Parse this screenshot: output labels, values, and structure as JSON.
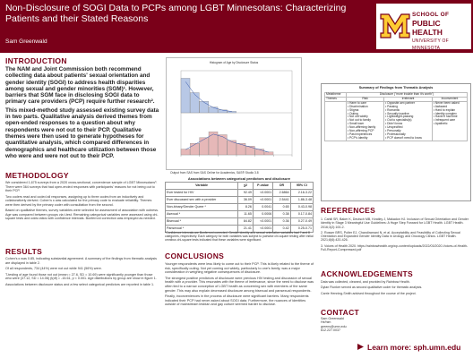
{
  "header": {
    "title": "Non-Disclosure of SOGI Data to PCPs among LGBT Minnesotans: Characterizing Patients and their Stated Reasons",
    "author": "Sam Greenwald",
    "logo": {
      "line1": "SCHOOL OF",
      "line2": "PUBLIC HEALTH",
      "line3": "UNIVERSITY OF MINNESOTA"
    }
  },
  "introduction": {
    "heading": "INTRODUCTION",
    "p1": "The NAM and Joint Commission both recommend collecting data about patients' sexual orientation and gender identity (SOGI) to address health disparities among sexual and gender minorities (SGM)¹. However, barriers that SGM face in disclosing SOGI data to primary care providers (PCP) require further research².",
    "p2": "This mixed-method study assessed existing survey data in two parts. Qualitative analysis derived themes from open-ended responses to a question about why respondents were not out to their PCP. Qualitative themes were then used to generate hypotheses for quantitative analysis, which compared differences in demographics and healthcare utilization between those who were and were not out to their PCP."
  },
  "methodology": {
    "heading": "METHODOLOGY",
    "p1": "We considered 1,675 surveys from a 2020 cross-sectional, convenience sample of LGBT Minnesotans³. There were 364 surveys that had open-ended responses with participants' reasons for not being out to their PCP.",
    "p2": "Two coders read and coded all responses, assigning up to three codes from an inductively and collaboratively derived. Cohen's κ was calculated for the primary code to evaluate reliability. Themes were then derived by the primary coder with consultation from the second.",
    "p3": "Based on qualitative themes, survey variables were selected for assessment of association with outness. Age was compared between groups via t-test. Remaining categorical variables were assessed using chi-square tests and odds ratios with confidence intervals. Bonferroni correction was employed as needed."
  },
  "results": {
    "heading": "RESULTS",
    "p1": "Cohen's κ was 0.85, indicating substantial agreement. A summary of the findings from thematic analysis are displayed in table 2.",
    "p2": "Of all respondents, 734 (44%) were not out while 941 (56%) were.",
    "p3": "T-testing of age found those not out (mean = 27.6, SD = 10.69) were significantly younger than those who were (37.12, SD = 14.06) (t(df) = -15.61, p < 0.001. Age distributions by group are show in figure 1.",
    "p4": "Associations between disclosure status and a few select categorical predictors are reported in table 1."
  },
  "histogram": {
    "title": "Histogram of Age by Disclosure Status",
    "caption": "Output from SAS from SAS Online for Academics, SAS® Studio 3.8",
    "chart_data": {
      "type": "bar",
      "title": "Histogram of Age by Disclosure Status",
      "series": [
        {
          "name": "",
          "values": [
            0.12,
            0.07,
            0.04,
            0.02,
            0.01,
            0.005
          ]
        },
        {
          "name": "",
          "values": [
            0.02,
            0.04,
            0.06,
            0.08,
            0.07,
            0.05,
            0.04,
            0.03,
            0.02,
            0.01
          ]
        }
      ]
    }
  },
  "assoc_table": {
    "title": "Associations between categorical predictors and disclosure",
    "headers": [
      "Variable",
      "χ2",
      "P-value",
      "OR",
      "95% CI"
    ],
    "rows": [
      [
        "Ever tested for HIV",
        "92.49",
        "<0.0001",
        "2.6864",
        "2.16-3.22"
      ],
      [
        "Ever discussed sex with a provider",
        "36.09",
        "<0.0001",
        "2.5441",
        "1.86-3.48"
      ],
      [
        "Non-binary/Gender Queer *",
        "8.26",
        "0.0041",
        "0.65",
        "0.43-0.98"
      ],
      [
        "Asexual *",
        "11.65",
        "0.0006",
        "0.38",
        "0.17-0.84"
      ],
      [
        "Bisexual *",
        "84.82",
        "<0.0001",
        "0.36",
        "0.27-0.49"
      ],
      [
        "Pansexual *",
        "21.41",
        "<0.0001",
        "0.42",
        "0.25-0.71"
      ]
    ],
    "footnote": "*Confidence intervals are Bonferroni corrected. Gender identity and sexual orientation variables had 7 and 8 categories, respectively. Each category for both variables was subject to pairwise chi-square testing after initial omnibus chi-square tests indicated that these variables were significant."
  },
  "conclusions": {
    "heading": "CONCLUSIONS",
    "p1": "Younger respondents were less likely to come out to their PCP. This is likely related to the theme of risk, specifically outing. Not yet coming out widely, particularly to one's family, was a major consideration in weighing negative consequences of disclosure.",
    "p2": "The strongest positive predictors of disclosure were previous HIV testing and discussion of sexual health with a provider. This resonates with the theme of irrelevance, since the need to disclose was often tied to a narrow conception of LGBT health as concerning sex with members of the same gender. This may also explain decreased disclosure among bisexual and pansexual respondents.",
    "p3": "Finally, inconveniences in the process of disclosure were significant barriers. Many respondents indicated their PCP had never asked about SOGI data. Furthermore, the nuances of identities outside of mainstream lesbian and gay culture seemed harder to disclose."
  },
  "summary_table": {
    "title": "Summary of Findings from Thematic Analysis",
    "question": "Disclosure (\"more trouble than it's worth\")",
    "row_labels": [
      "Metatheme",
      "Themes"
    ],
    "columns": [
      {
        "head": "Risk",
        "items": [
          "Harm to care",
          "Discrimination",
          "Stigma",
          "Outing",
          "Not out widely",
          "Not out to family",
          "Small town",
          "Non-affirming family",
          "Non-affirming PCP",
          "Past experiences",
          "PCP's identity"
        ]
      },
      {
        "head": "Irrelevant",
        "items": [
          "Opposite-sex partner",
          "Passing",
          "Romantic",
          "Sexually inactive",
          "Lightweight-passing",
          "Out to specialist(s)",
          "Didn't know",
          "Unspecified",
          "Personally",
          "Professionally",
          "PCP doesn't need to know"
        ]
      },
      {
        "head": "Inconvenient",
        "items": [
          "Never been asked",
          "Awkward",
          "Hard to explain",
          "Identity complex",
          "Haven't had time",
          "Infrequent care",
          "Apathetic"
        ]
      }
    ]
  },
  "references": {
    "heading": "REFERENCES",
    "items": [
      "1. Cahill SR, Baker K, Deutsch MB, Keatley J, Makadon HJ. Inclusion of Sexual Orientation and Gender Identity in Stage 3 Meaningful Use Guidelines: A Huge Step Forward for LGBT Health. LGBT Health. 2016;3(2):100-2.",
      "2. Rosser BRS, Polter EJ, Chandiramani N, et al. Acceptability and Feasibility of Collecting Sexual Orientation and Expanded Gender Identity Data in Urology and Oncology Clinics. LGBT Health. 2021;8(6):420-426.",
      "3. Voices of Health 2020. https://rainbowhealth.org/wp-content/uploads/2022/03/2020-Voices-of-Health-Full-Report-Compressed.pdf"
    ]
  },
  "acknowledgements": {
    "heading": "ACKNOWLEDGEMENTS",
    "p1": "Data was collected, cleaned, and provided by Rainbow Health.",
    "p2": "Dylan Flunker served as second qualitative coder for thematic analysis.",
    "p3": "Carrie Henning-Smith advised throughout the course of the project."
  },
  "contact": {
    "heading": "CONTACT",
    "lines": [
      "Sam Greenwald",
      "He/him",
      "greens@umn.edu",
      "612.227.0037"
    ]
  },
  "learn_more": "Learn more: sph.umn.edu",
  "colors": {
    "maroon": "#7a0019",
    "gold": "#ffcc33",
    "bar_blue": "#b8c8e6",
    "bar_red": "#e6b8b8"
  }
}
